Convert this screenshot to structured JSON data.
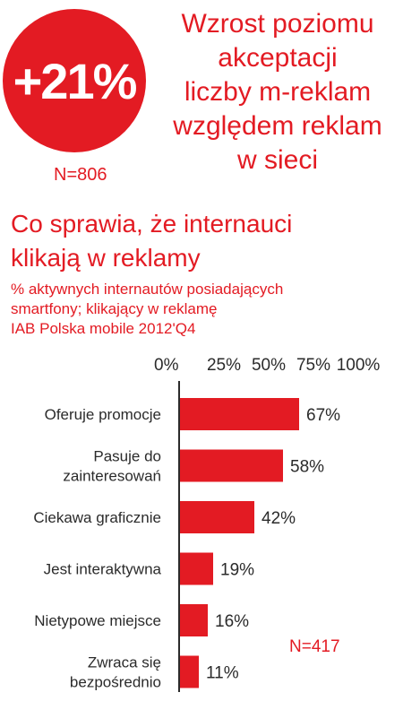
{
  "badge": {
    "value": "+21%",
    "n": "N=806"
  },
  "headline": {
    "lines": [
      "Wzrost poziomu",
      "akceptacji",
      "liczby m-reklam",
      "względem reklam",
      "w sieci"
    ]
  },
  "title_lines": [
    "Co sprawia, że internauci",
    "klikają w reklamy"
  ],
  "subtitle_lines": [
    "% aktywnych internautów posiadających",
    "smartfony; klikający w reklamę",
    "IAB Polska mobile 2012'Q4"
  ],
  "colors": {
    "accent": "#e31b23",
    "text": "#2b2b2b"
  },
  "chart_data": {
    "type": "bar",
    "orientation": "horizontal",
    "categories": [
      [
        "Oferuje promocje"
      ],
      [
        "Pasuje do",
        "zainteresowań"
      ],
      [
        "Ciekawa graficznie"
      ],
      [
        "Jest interaktywna"
      ],
      [
        "Nietypowe miejsce"
      ],
      [
        "Zwraca się",
        "bezpośrednio"
      ]
    ],
    "values": [
      67,
      58,
      42,
      19,
      16,
      11
    ],
    "value_labels": [
      "67%",
      "58%",
      "42%",
      "19%",
      "16%",
      "11%"
    ],
    "xticks": [
      "0%",
      "25%",
      "50%",
      "75%",
      "100%"
    ],
    "xlim": [
      0,
      100
    ],
    "tick_position": "top",
    "grid": false,
    "n": "N=417"
  }
}
